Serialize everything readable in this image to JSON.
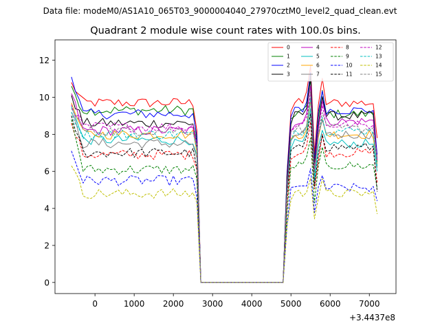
{
  "suptitle": "Data file: modeM0/AS1A10_065T03_9000004040_27970cztM0_level2_quad_clean.evt",
  "chart_data": {
    "type": "line",
    "title": "Quadrant 2 module wise count rates with 100.0s bins.",
    "xlabel": "",
    "ylabel": "",
    "x_offset_label": "+3.4437e8",
    "xlim": [
      -1020,
      7680
    ],
    "ylim": [
      -0.6,
      13.1
    ],
    "xticks": [
      0,
      1000,
      2000,
      3000,
      4000,
      5000,
      6000,
      7000
    ],
    "xtick_labels": [
      "0",
      "1000",
      "2000",
      "3000",
      "4000",
      "5000",
      "6000",
      "7000"
    ],
    "yticks": [
      0,
      2,
      4,
      6,
      8,
      10,
      12
    ],
    "ytick_labels": [
      "0",
      "2",
      "4",
      "6",
      "8",
      "10",
      "12"
    ],
    "legend_position": "upper right",
    "legend_columns": 4,
    "x_segments": {
      "first": {
        "start": -600,
        "end": 2600,
        "step": 100
      },
      "gap": [
        2700,
        4800
      ],
      "second": {
        "start": 4900,
        "end": 7200,
        "step": 100
      }
    },
    "series": [
      {
        "name": "0",
        "color": "#ff0000",
        "style": "solid",
        "level_a": 9.7,
        "level_b": 9.7,
        "start": 10.8,
        "end_a": 8.2,
        "end_b": 7.8
      },
      {
        "name": "1",
        "color": "#008000",
        "style": "solid",
        "level_a": 9.3,
        "level_b": 9.1,
        "start": 10.6,
        "end_a": 7.6,
        "end_b": 6.5
      },
      {
        "name": "2",
        "color": "#0000ff",
        "style": "solid",
        "level_a": 9.1,
        "level_b": 9.3,
        "start": 11.1,
        "end_a": 7.9,
        "end_b": 6.9
      },
      {
        "name": "3",
        "color": "#000000",
        "style": "solid",
        "level_a": 8.6,
        "level_b": 9.0,
        "start": 10.1,
        "end_a": 7.5,
        "end_b": 6.6
      },
      {
        "name": "4",
        "color": "#bf00bf",
        "style": "solid",
        "level_a": 8.2,
        "level_b": 8.7,
        "start": 10.2,
        "end_a": 7.2,
        "end_b": 6.6
      },
      {
        "name": "5",
        "color": "#00bfbf",
        "style": "solid",
        "level_a": 7.7,
        "level_b": 7.5,
        "start": 9.5,
        "end_a": 6.9,
        "end_b": 6.0
      },
      {
        "name": "6",
        "color": "#ffa500",
        "style": "solid",
        "level_a": 8.0,
        "level_b": 8.0,
        "start": 9.7,
        "end_a": 7.0,
        "end_b": 6.4
      },
      {
        "name": "7",
        "color": "#808080",
        "style": "solid",
        "level_a": 7.5,
        "level_b": 8.0,
        "start": 9.2,
        "end_a": 6.7,
        "end_b": 6.2
      },
      {
        "name": "8",
        "color": "#ff0000",
        "style": "dashed",
        "level_a": 6.9,
        "level_b": 7.0,
        "start": 8.6,
        "end_a": 6.1,
        "end_b": 5.4
      },
      {
        "name": "9",
        "color": "#008000",
        "style": "dashed",
        "level_a": 6.1,
        "level_b": 6.3,
        "start": 8.8,
        "end_a": 5.6,
        "end_b": 5.1
      },
      {
        "name": "10",
        "color": "#0000ff",
        "style": "dashed",
        "level_a": 5.5,
        "level_b": 5.1,
        "start": 7.1,
        "end_a": 4.6,
        "end_b": 4.4
      },
      {
        "name": "11",
        "color": "#000000",
        "style": "dashed",
        "level_a": 7.0,
        "level_b": 7.3,
        "start": 9.0,
        "end_a": 6.2,
        "end_b": 4.9
      },
      {
        "name": "12",
        "color": "#bf00bf",
        "style": "dashed",
        "level_a": 8.4,
        "level_b": 8.5,
        "start": 9.6,
        "end_a": 7.5,
        "end_b": 6.8
      },
      {
        "name": "13",
        "color": "#00bfbf",
        "style": "dashed",
        "level_a": 8.0,
        "level_b": 8.2,
        "start": 9.2,
        "end_a": 7.2,
        "end_b": 6.3
      },
      {
        "name": "14",
        "color": "#bfbf00",
        "style": "dashed",
        "level_a": 4.8,
        "level_b": 4.8,
        "start": 6.3,
        "end_a": 4.3,
        "end_b": 3.7
      },
      {
        "name": "15",
        "color": "#808080",
        "style": "dashed",
        "level_a": 8.2,
        "level_b": 8.3,
        "start": 9.4,
        "end_a": 7.4,
        "end_b": 6.7
      }
    ]
  }
}
